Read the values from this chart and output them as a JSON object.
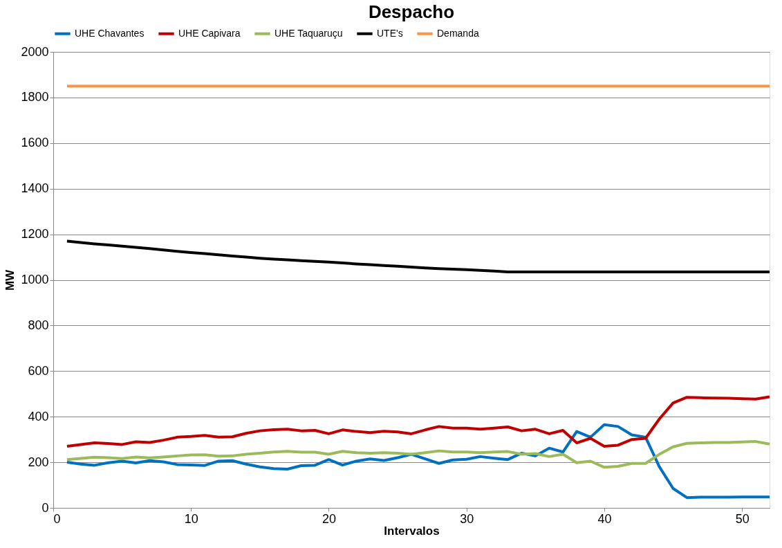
{
  "chart_data": {
    "type": "line",
    "title": "Despacho",
    "xlabel": "Intervalos",
    "ylabel": "MW",
    "x": [
      1,
      2,
      3,
      4,
      5,
      6,
      7,
      8,
      9,
      10,
      11,
      12,
      13,
      14,
      15,
      16,
      17,
      18,
      19,
      20,
      21,
      22,
      23,
      24,
      25,
      26,
      27,
      28,
      29,
      30,
      31,
      32,
      33,
      34,
      35,
      36,
      37,
      38,
      39,
      40,
      41,
      42,
      43,
      44,
      45,
      46,
      47,
      48,
      49,
      50,
      51,
      52
    ],
    "xlim": [
      0,
      52
    ],
    "xticks": [
      0,
      10,
      20,
      30,
      40,
      50
    ],
    "ylim": [
      0,
      2000
    ],
    "yticks": [
      0,
      200,
      400,
      600,
      800,
      1000,
      1200,
      1400,
      1600,
      1800,
      2000
    ],
    "grid": "y",
    "legend": "top",
    "marker": "none",
    "line_style": "solid",
    "series": [
      {
        "name": "UHE Chavantes",
        "color": "#0070c0",
        "values": [
          200,
          192,
          187,
          198,
          205,
          197,
          207,
          202,
          190,
          188,
          186,
          205,
          207,
          192,
          180,
          172,
          170,
          185,
          187,
          212,
          188,
          205,
          215,
          208,
          220,
          235,
          215,
          195,
          210,
          213,
          225,
          218,
          212,
          240,
          228,
          262,
          245,
          335,
          310,
          365,
          357,
          320,
          310,
          180,
          85,
          45,
          47,
          47,
          47,
          48,
          48,
          48
        ]
      },
      {
        "name": "UHE Capivara",
        "color": "#c00000",
        "values": [
          270,
          278,
          285,
          282,
          278,
          290,
          287,
          297,
          310,
          313,
          318,
          310,
          312,
          327,
          338,
          343,
          345,
          338,
          340,
          325,
          342,
          335,
          330,
          336,
          333,
          325,
          342,
          357,
          350,
          350,
          345,
          350,
          355,
          338,
          345,
          325,
          340,
          285,
          305,
          270,
          275,
          300,
          305,
          390,
          460,
          485,
          483,
          482,
          481,
          479,
          477,
          487
        ]
      },
      {
        "name": "UHE Taquaruçu",
        "color": "#9bbb59",
        "values": [
          212,
          217,
          222,
          220,
          216,
          223,
          219,
          223,
          228,
          232,
          233,
          227,
          228,
          235,
          240,
          245,
          248,
          244,
          244,
          235,
          248,
          242,
          240,
          242,
          240,
          235,
          242,
          250,
          245,
          245,
          242,
          245,
          247,
          235,
          238,
          225,
          235,
          198,
          205,
          178,
          182,
          195,
          195,
          235,
          268,
          283,
          285,
          287,
          287,
          289,
          291,
          280
        ]
      },
      {
        "name": "UTE's",
        "color": "#000000",
        "values": [
          1170,
          1164,
          1158,
          1153,
          1148,
          1143,
          1137,
          1131,
          1125,
          1120,
          1115,
          1110,
          1105,
          1100,
          1095,
          1091,
          1088,
          1084,
          1081,
          1078,
          1074,
          1070,
          1067,
          1063,
          1060,
          1056,
          1052,
          1049,
          1047,
          1045,
          1042,
          1039,
          1035,
          1035,
          1035,
          1035,
          1035,
          1035,
          1035,
          1035,
          1035,
          1035,
          1035,
          1035,
          1035,
          1035,
          1035,
          1035,
          1035,
          1035,
          1035,
          1035
        ]
      },
      {
        "name": "Demanda",
        "color": "#f79646",
        "values": [
          1850,
          1850,
          1850,
          1850,
          1850,
          1850,
          1850,
          1850,
          1850,
          1850,
          1850,
          1850,
          1850,
          1850,
          1850,
          1850,
          1850,
          1850,
          1850,
          1850,
          1850,
          1850,
          1850,
          1850,
          1850,
          1850,
          1850,
          1850,
          1850,
          1850,
          1850,
          1850,
          1850,
          1850,
          1850,
          1850,
          1850,
          1850,
          1850,
          1850,
          1850,
          1850,
          1850,
          1850,
          1850,
          1850,
          1850,
          1850,
          1850,
          1850,
          1850,
          1850
        ]
      }
    ]
  }
}
